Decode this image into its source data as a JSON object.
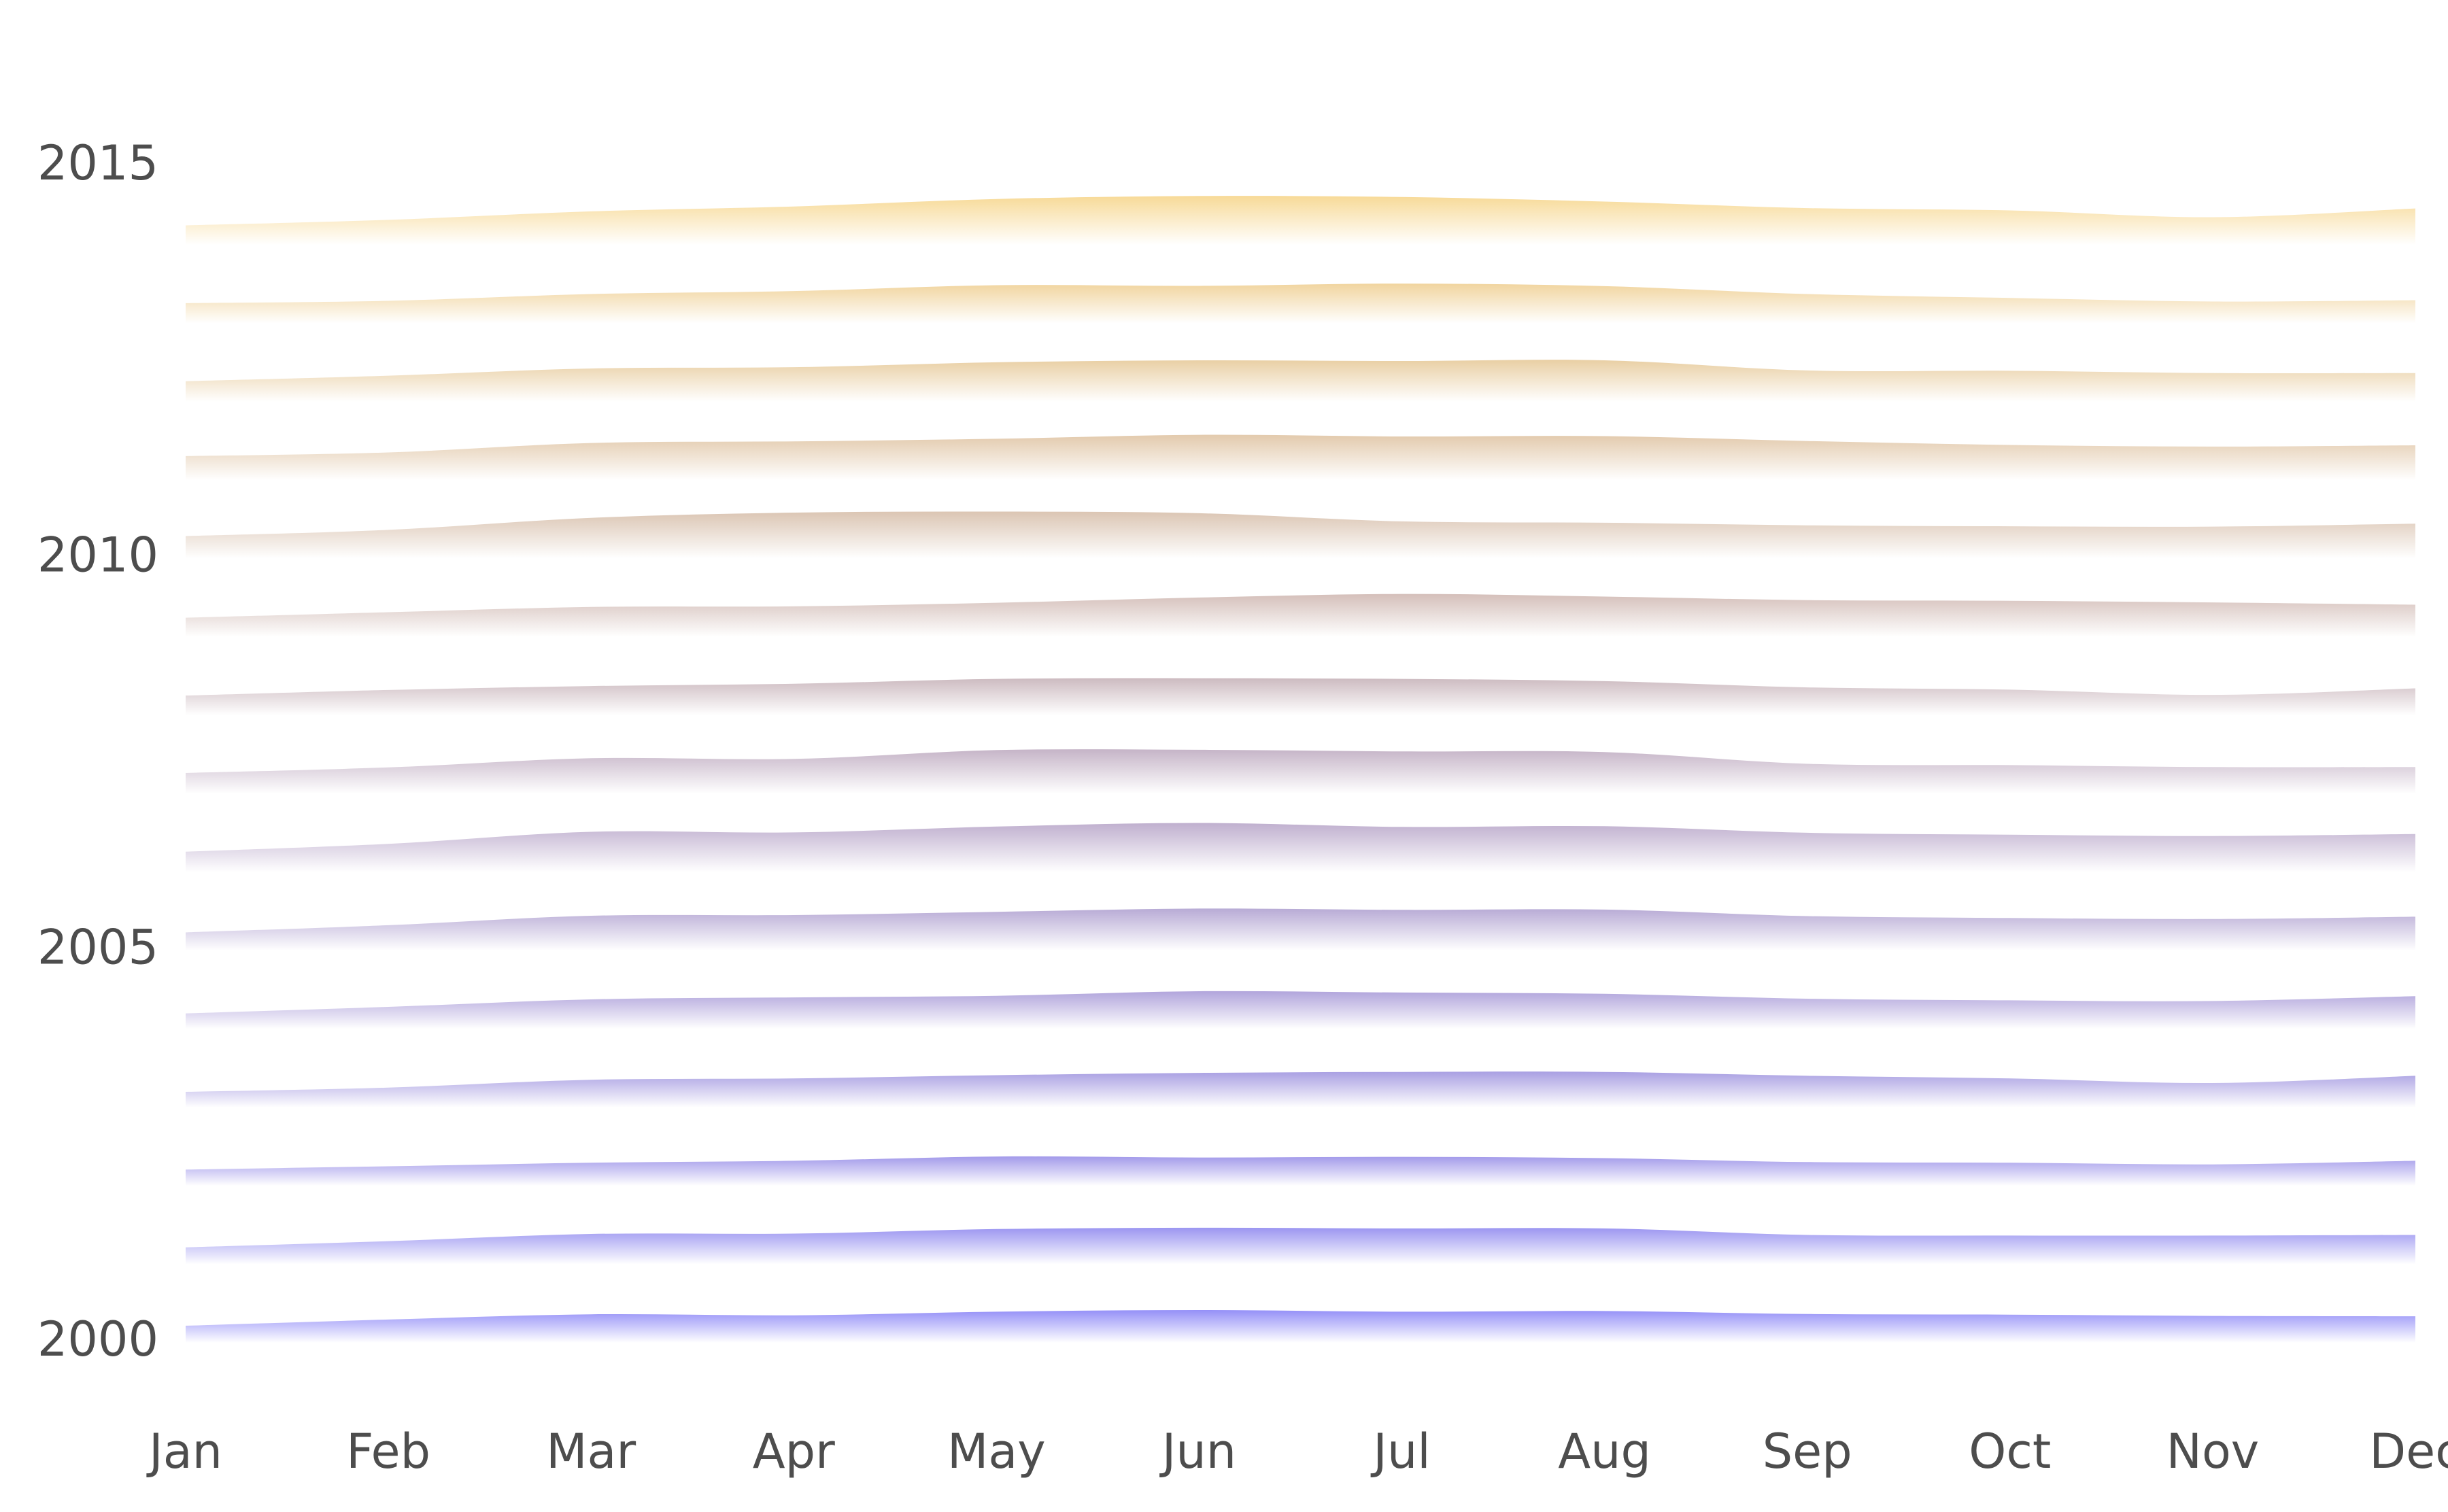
{
  "chart_data": {
    "type": "area",
    "x": [
      "Jan",
      "Feb",
      "Mar",
      "Apr",
      "May",
      "Jun",
      "Jul",
      "Aug",
      "Sep",
      "Oct",
      "Nov",
      "Dec"
    ],
    "y_tick_labels": [
      "2000",
      "2005",
      "2010",
      "2015"
    ],
    "ylim": [
      2000,
      2016
    ],
    "grid": false,
    "legend": "none",
    "color_start": "#8f8af7",
    "color_end": "#f7d892",
    "series": [
      {
        "values": [
          0.52,
          0.71,
          0.87,
          0.84,
          0.95,
          1.0,
          0.95,
          0.97,
          0.88,
          0.86,
          0.82,
          0.81
        ]
      },
      {
        "values": [
          0.52,
          0.71,
          0.93,
          0.94,
          1.08,
          1.12,
          1.1,
          1.1,
          0.9,
          0.88,
          0.88,
          0.9
        ]
      },
      {
        "values": [
          0.5,
          0.6,
          0.71,
          0.77,
          0.9,
          0.87,
          0.89,
          0.85,
          0.73,
          0.71,
          0.66,
          0.77
        ]
      },
      {
        "values": [
          0.48,
          0.61,
          0.85,
          0.89,
          0.99,
          1.06,
          1.09,
          1.09,
          0.97,
          0.89,
          0.75,
          0.97
        ]
      },
      {
        "values": [
          0.48,
          0.68,
          0.91,
          0.97,
          1.02,
          1.16,
          1.12,
          1.08,
          0.93,
          0.88,
          0.86,
          1.01
        ]
      },
      {
        "values": [
          0.56,
          0.78,
          1.07,
          1.09,
          1.19,
          1.29,
          1.25,
          1.26,
          1.06,
          1.0,
          0.97,
          1.04
        ]
      },
      {
        "values": [
          0.63,
          0.87,
          1.24,
          1.22,
          1.4,
          1.51,
          1.39,
          1.41,
          1.21,
          1.15,
          1.11,
          1.17
        ]
      },
      {
        "values": [
          0.64,
          0.81,
          1.09,
          1.07,
          1.34,
          1.35,
          1.3,
          1.28,
          0.92,
          0.88,
          0.82,
          0.82
        ]
      },
      {
        "values": [
          0.61,
          0.78,
          0.9,
          0.97,
          1.12,
          1.14,
          1.12,
          1.05,
          0.86,
          0.79,
          0.63,
          0.83
        ]
      },
      {
        "values": [
          0.59,
          0.76,
          0.92,
          0.94,
          1.05,
          1.21,
          1.32,
          1.24,
          1.13,
          1.11,
          1.06,
          0.99
        ]
      },
      {
        "values": [
          0.69,
          0.88,
          1.25,
          1.41,
          1.44,
          1.39,
          1.14,
          1.1,
          1.02,
          0.99,
          0.98,
          1.07
        ]
      },
      {
        "values": [
          0.74,
          0.85,
          1.14,
          1.19,
          1.27,
          1.39,
          1.34,
          1.35,
          1.2,
          1.08,
          1.03,
          1.07
        ]
      },
      {
        "values": [
          0.63,
          0.8,
          1.02,
          1.06,
          1.21,
          1.27,
          1.25,
          1.27,
          0.96,
          0.95,
          0.88,
          0.88
        ]
      },
      {
        "values": [
          0.62,
          0.69,
          0.9,
          0.99,
          1.17,
          1.15,
          1.22,
          1.14,
          0.9,
          0.78,
          0.67,
          0.71
        ]
      },
      {
        "values": [
          0.6,
          0.77,
          1.03,
          1.18,
          1.41,
          1.5,
          1.47,
          1.33,
          1.13,
          1.06,
          0.85,
          1.12
        ]
      }
    ]
  }
}
